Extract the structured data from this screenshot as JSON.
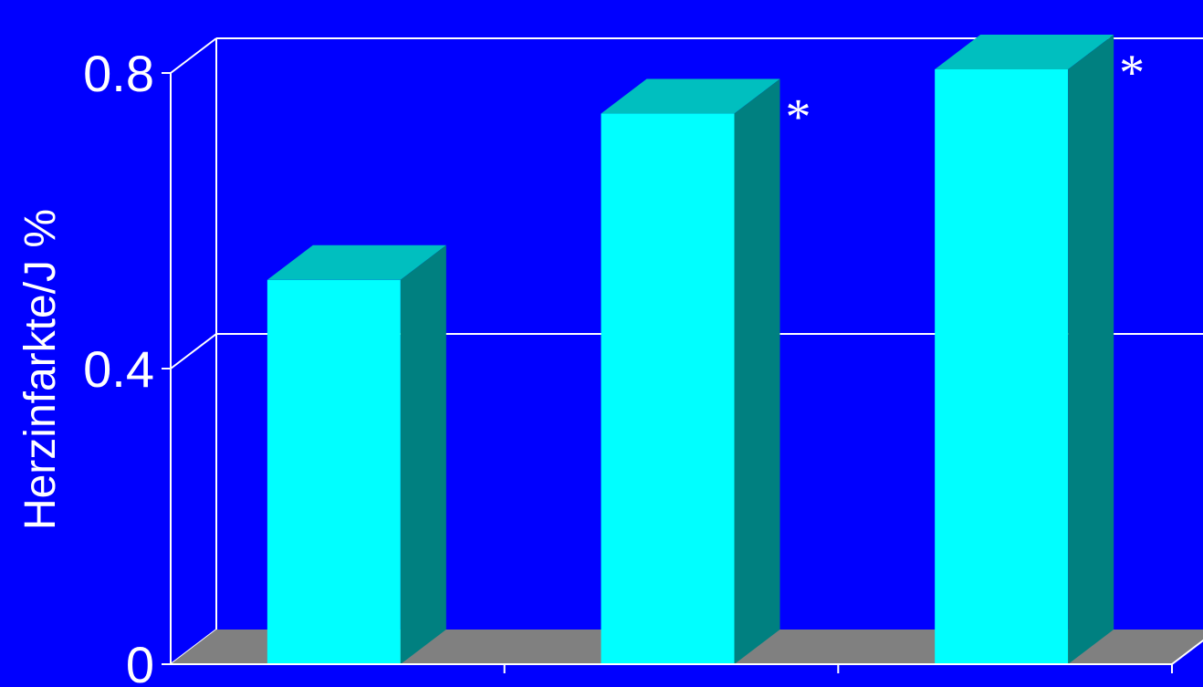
{
  "chart_data": {
    "type": "bar",
    "ylabel": "Herzinfarkte/J %",
    "ylim": [
      0,
      0.8
    ],
    "yticks": [
      {
        "value": 0,
        "label": "0"
      },
      {
        "value": 0.4,
        "label": "0.4"
      },
      {
        "value": 0.8,
        "label": "0.8"
      }
    ],
    "categories": [
      "",
      "",
      ""
    ],
    "values": [
      0.52,
      0.745,
      0.805
    ],
    "annotations": [
      "",
      "*",
      "*"
    ],
    "grid": true,
    "colors": {
      "background": "#0000FF",
      "bar_front": "#00FFFF",
      "bar_top": "#00BFBF",
      "bar_side": "#008080",
      "floor": "#808080",
      "lines": "#FFFFFF"
    }
  }
}
